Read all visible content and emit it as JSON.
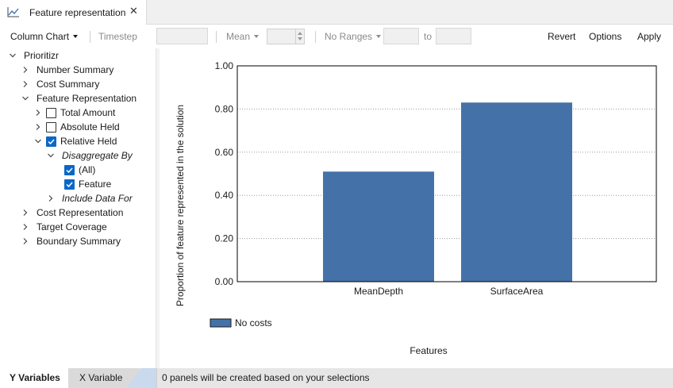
{
  "tab": {
    "title": "Feature representation",
    "icon": "line-chart-icon",
    "close_glyph": "✕"
  },
  "toolbar": {
    "chart_type": "Column Chart",
    "timestep": "Timestep",
    "aggregation": "Mean",
    "ranges": "No Ranges",
    "to_label": "to",
    "revert": "Revert",
    "options": "Options",
    "apply": "Apply"
  },
  "tree": {
    "root": "Prioritizr",
    "number_summary": "Number Summary",
    "cost_summary": "Cost Summary",
    "feature_representation": "Feature Representation",
    "total_amount": "Total Amount",
    "absolute_held": "Absolute Held",
    "relative_held": "Relative Held",
    "disaggregate_by": "Disaggregate By",
    "all": "(All)",
    "feature": "Feature",
    "include_data_for": "Include Data For",
    "cost_representation": "Cost Representation",
    "target_coverage": "Target Coverage",
    "boundary_summary": "Boundary Summary"
  },
  "bottom_tabs": {
    "y_variables": "Y Variables",
    "x_variable": "X Variable"
  },
  "status": {
    "message": "0 panels will be created based on your selections"
  },
  "colors": {
    "bar": "#4472a8",
    "accent": "#0a67c8"
  },
  "chart_data": {
    "type": "bar",
    "categories": [
      "MeanDepth",
      "SurfaceArea"
    ],
    "series": [
      {
        "name": "No costs",
        "values": [
          0.51,
          0.83
        ]
      }
    ],
    "ylabel": "Proportion of feature represented in the solution",
    "xlabel": "Features",
    "ylim": [
      0,
      1
    ],
    "yticks": [
      "0.00",
      "0.20",
      "0.40",
      "0.60",
      "0.80",
      "1.00"
    ],
    "grid": "horizontal dotted",
    "legend_position": "bottom-left"
  }
}
